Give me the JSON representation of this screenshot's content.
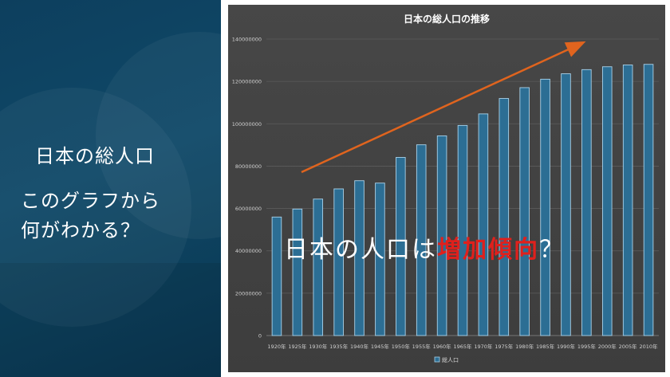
{
  "slide": {
    "left_title": "日本の総人口",
    "left_line2": "このグラフから",
    "left_line3": "何がわかる？",
    "overlay_prefix": "日本の人口は",
    "overlay_highlight": "増加傾向",
    "overlay_suffix": "？"
  },
  "colors": {
    "left_bg": "#0f4968",
    "chart_bg": "#404040",
    "bar_fill": "#2c6e94",
    "bar_edge": "#a9d2ea",
    "arrow": "#e0641e",
    "highlight": "#e0201c"
  },
  "chart_data": {
    "type": "bar",
    "title": "日本の総人口の推移",
    "categories": [
      "1920年",
      "1925年",
      "1930年",
      "1935年",
      "1940年",
      "1945年",
      "1950年",
      "1955年",
      "1960年",
      "1965年",
      "1970年",
      "1975年",
      "1980年",
      "1985年",
      "1990年",
      "1995年",
      "2000年",
      "2005年",
      "2010年"
    ],
    "series": [
      {
        "name": "総人口",
        "values": [
          55963053,
          59736822,
          64450005,
          69254148,
          73114308,
          71998104,
          84114574,
          90076594,
          94301623,
          99209137,
          104665171,
          111939643,
          117060396,
          121048923,
          123611167,
          125570246,
          126925843,
          127767994,
          128057352
        ]
      }
    ],
    "yticks": [
      "0",
      "20000000",
      "40000000",
      "60000000",
      "80000000",
      "100000000",
      "120000000",
      "140000000"
    ],
    "ylim": [
      0,
      140000000
    ],
    "grid": true,
    "legend": "bottom",
    "annotation": "increasing-trend-arrow"
  }
}
